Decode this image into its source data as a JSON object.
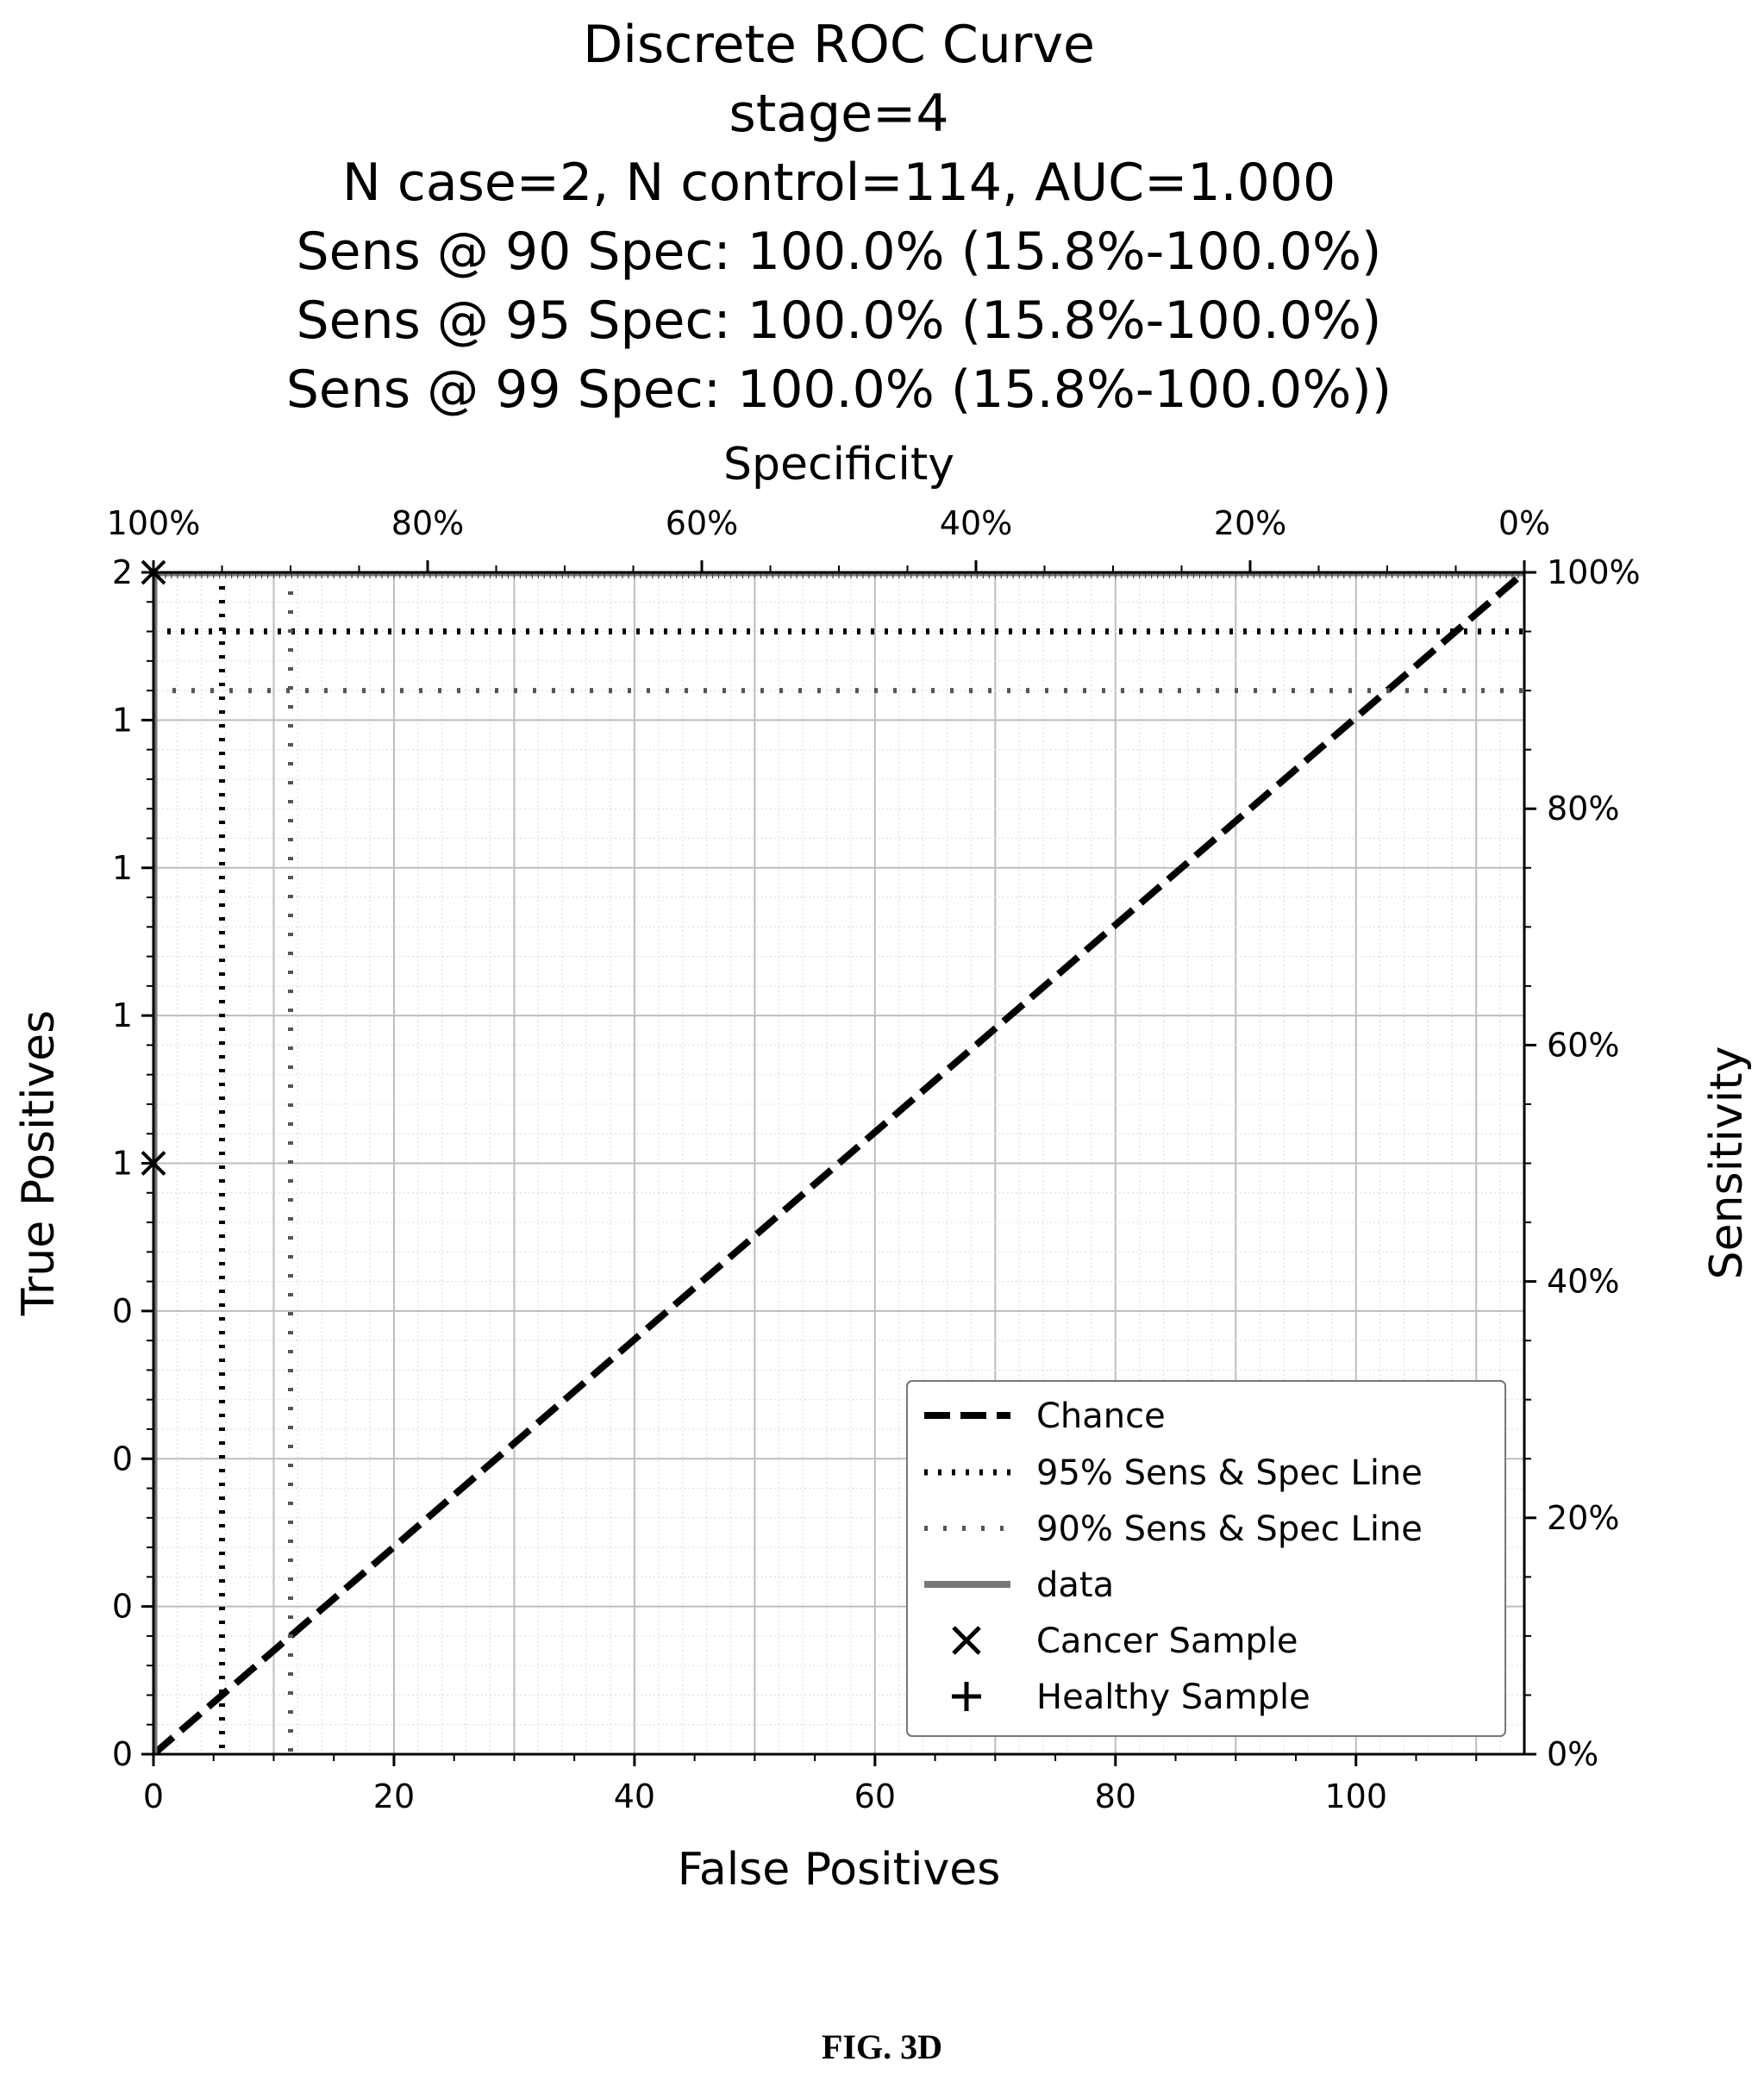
{
  "chart_data": {
    "type": "line",
    "title_lines": [
      "Discrete ROC Curve",
      "stage=4",
      "N case=2, N control=114, AUC=1.000",
      "Sens @ 90 Spec: 100.0% (15.8%-100.0%)",
      "Sens @ 95 Spec: 100.0% (15.8%-100.0%)",
      "Sens @ 99 Spec: 100.0% (15.8%-100.0%))"
    ],
    "xlabel": "False Positives",
    "ylabel": "True Positives",
    "top_xlabel": "Specificity",
    "right_ylabel": "Sensitivity",
    "xlim": [
      0,
      114
    ],
    "ylim": [
      0,
      2
    ],
    "x_ticks": [
      0,
      20,
      40,
      60,
      80,
      100
    ],
    "x_tick_labels": [
      "0",
      "20",
      "40",
      "60",
      "80",
      "100"
    ],
    "y_ticks": [
      0,
      0.25,
      0.5,
      0.75,
      1,
      1.25,
      1.5,
      1.75,
      2
    ],
    "y_tick_labels": [
      "0",
      "0",
      "0",
      "0",
      "1",
      "1",
      "1",
      "1",
      "2"
    ],
    "top_ticks": [
      100,
      80,
      60,
      40,
      20,
      0
    ],
    "top_tick_labels": [
      "100%",
      "80%",
      "60%",
      "40%",
      "20%",
      "0%"
    ],
    "right_ticks": [
      0,
      20,
      40,
      60,
      80,
      100
    ],
    "right_tick_labels": [
      "0%",
      "20%",
      "40%",
      "60%",
      "80%",
      "100%"
    ],
    "grid": true,
    "legend_position": "lower-right",
    "series": [
      {
        "name": "Chance",
        "style": "dashed",
        "x": [
          0,
          114
        ],
        "y": [
          0,
          2
        ]
      },
      {
        "name": "95% Sens & Spec Line",
        "style": "dotted-dense",
        "hline_y": 1.9,
        "vline_x": 5.7
      },
      {
        "name": "90% Sens & Spec Line",
        "style": "dotted-sparse",
        "hline_y": 1.8,
        "vline_x": 11.4
      },
      {
        "name": "data",
        "style": "solid",
        "x": [
          0,
          0,
          114
        ],
        "y": [
          0,
          2,
          2
        ]
      },
      {
        "name": "Cancer Sample",
        "marker": "x",
        "x": [
          0,
          0
        ],
        "y": [
          1,
          2
        ]
      },
      {
        "name": "Healthy Sample",
        "marker": "+",
        "x": [],
        "y": []
      }
    ]
  },
  "caption": "FIG. 3D"
}
